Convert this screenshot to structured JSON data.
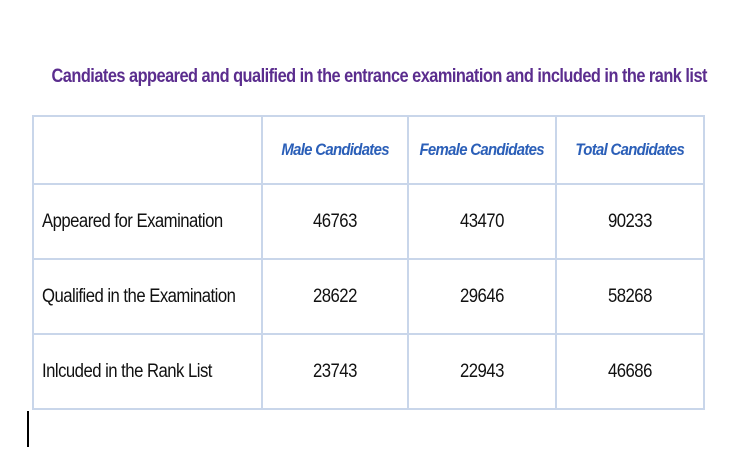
{
  "title": "Candiates appeared and qualified in the entrance examination and included in the rank list",
  "table": {
    "headers": [
      "",
      "Male Candidates",
      "Female Candidates",
      "Total Candidates"
    ],
    "rows": [
      {
        "label": "Appeared for Examination",
        "male": "46763",
        "female": "43470",
        "total": "90233"
      },
      {
        "label": "Qualified in the Examination",
        "male": "28622",
        "female": "29646",
        "total": "58268"
      },
      {
        "label": "Inlcuded in the Rank List",
        "male": "23743",
        "female": "22943",
        "total": "46686"
      }
    ]
  },
  "colors": {
    "title": "#5b2d8e",
    "header_text": "#2b5fb8",
    "grid": "#c9d6ea"
  }
}
